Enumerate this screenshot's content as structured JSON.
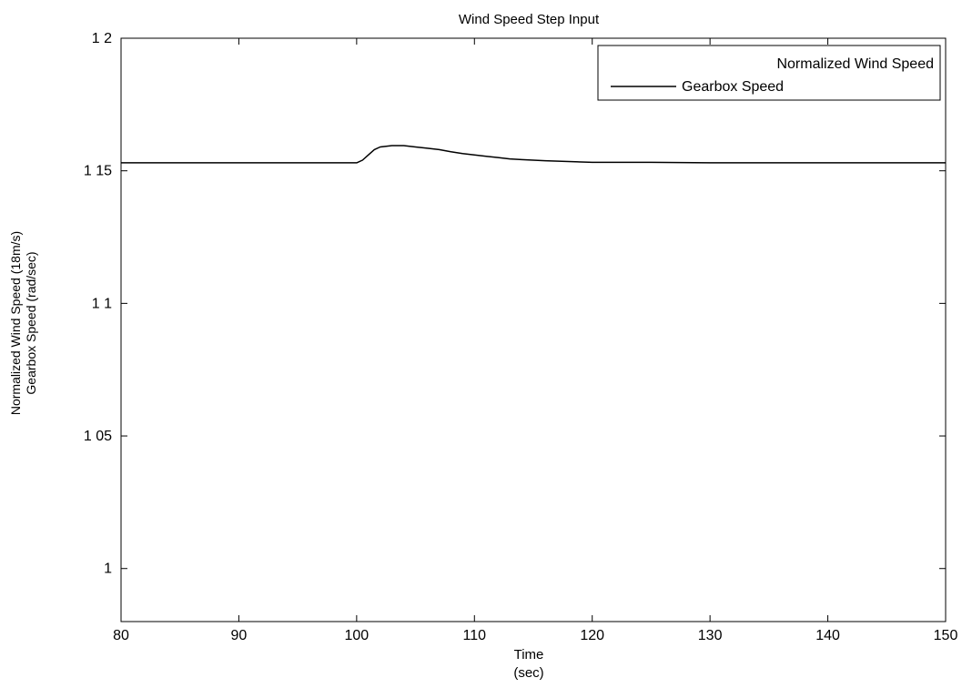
{
  "chart_data": {
    "type": "line",
    "title": "Wind Speed Step Input",
    "xlabel_line1": "Time",
    "xlabel_line2": "(sec)",
    "ylabel_line1": "Normalized Wind Speed (18m/s)",
    "ylabel_line2": "Gearbox Speed (rad/sec)",
    "xlim": [
      80,
      150
    ],
    "ylim": [
      0.98,
      1.2
    ],
    "x_ticks": [
      80,
      90,
      100,
      110,
      120,
      130,
      140,
      150
    ],
    "x_tick_labels": [
      "80",
      "90",
      "100",
      "110",
      "120",
      "130",
      "140",
      "150"
    ],
    "y_ticks": [
      1.0,
      1.05,
      1.1,
      1.15,
      1.2
    ],
    "y_tick_labels": [
      "1",
      "1 05",
      "1 1",
      "1 15",
      "1 2"
    ],
    "grid": false,
    "legend_position": "top-right",
    "legend": [
      {
        "label": "Normalized Wind Speed",
        "line": false
      },
      {
        "label": "Gearbox Speed",
        "line": true
      }
    ],
    "series": [
      {
        "name": "Gearbox Speed",
        "color": "#000000",
        "x": [
          80,
          90,
          99,
          100,
          100.5,
          101,
          101.5,
          102,
          103,
          104,
          105,
          106,
          107,
          108,
          109,
          110,
          111,
          112,
          113,
          114,
          115,
          116,
          118,
          120,
          125,
          130,
          135,
          140,
          145,
          150
        ],
        "y": [
          1.153,
          1.153,
          1.153,
          1.153,
          1.154,
          1.156,
          1.158,
          1.159,
          1.1595,
          1.1595,
          1.159,
          1.1585,
          1.158,
          1.1572,
          1.1565,
          1.156,
          1.1555,
          1.155,
          1.1545,
          1.1542,
          1.154,
          1.1538,
          1.1535,
          1.1532,
          1.1532,
          1.153,
          1.153,
          1.153,
          1.153,
          1.153
        ]
      }
    ]
  }
}
